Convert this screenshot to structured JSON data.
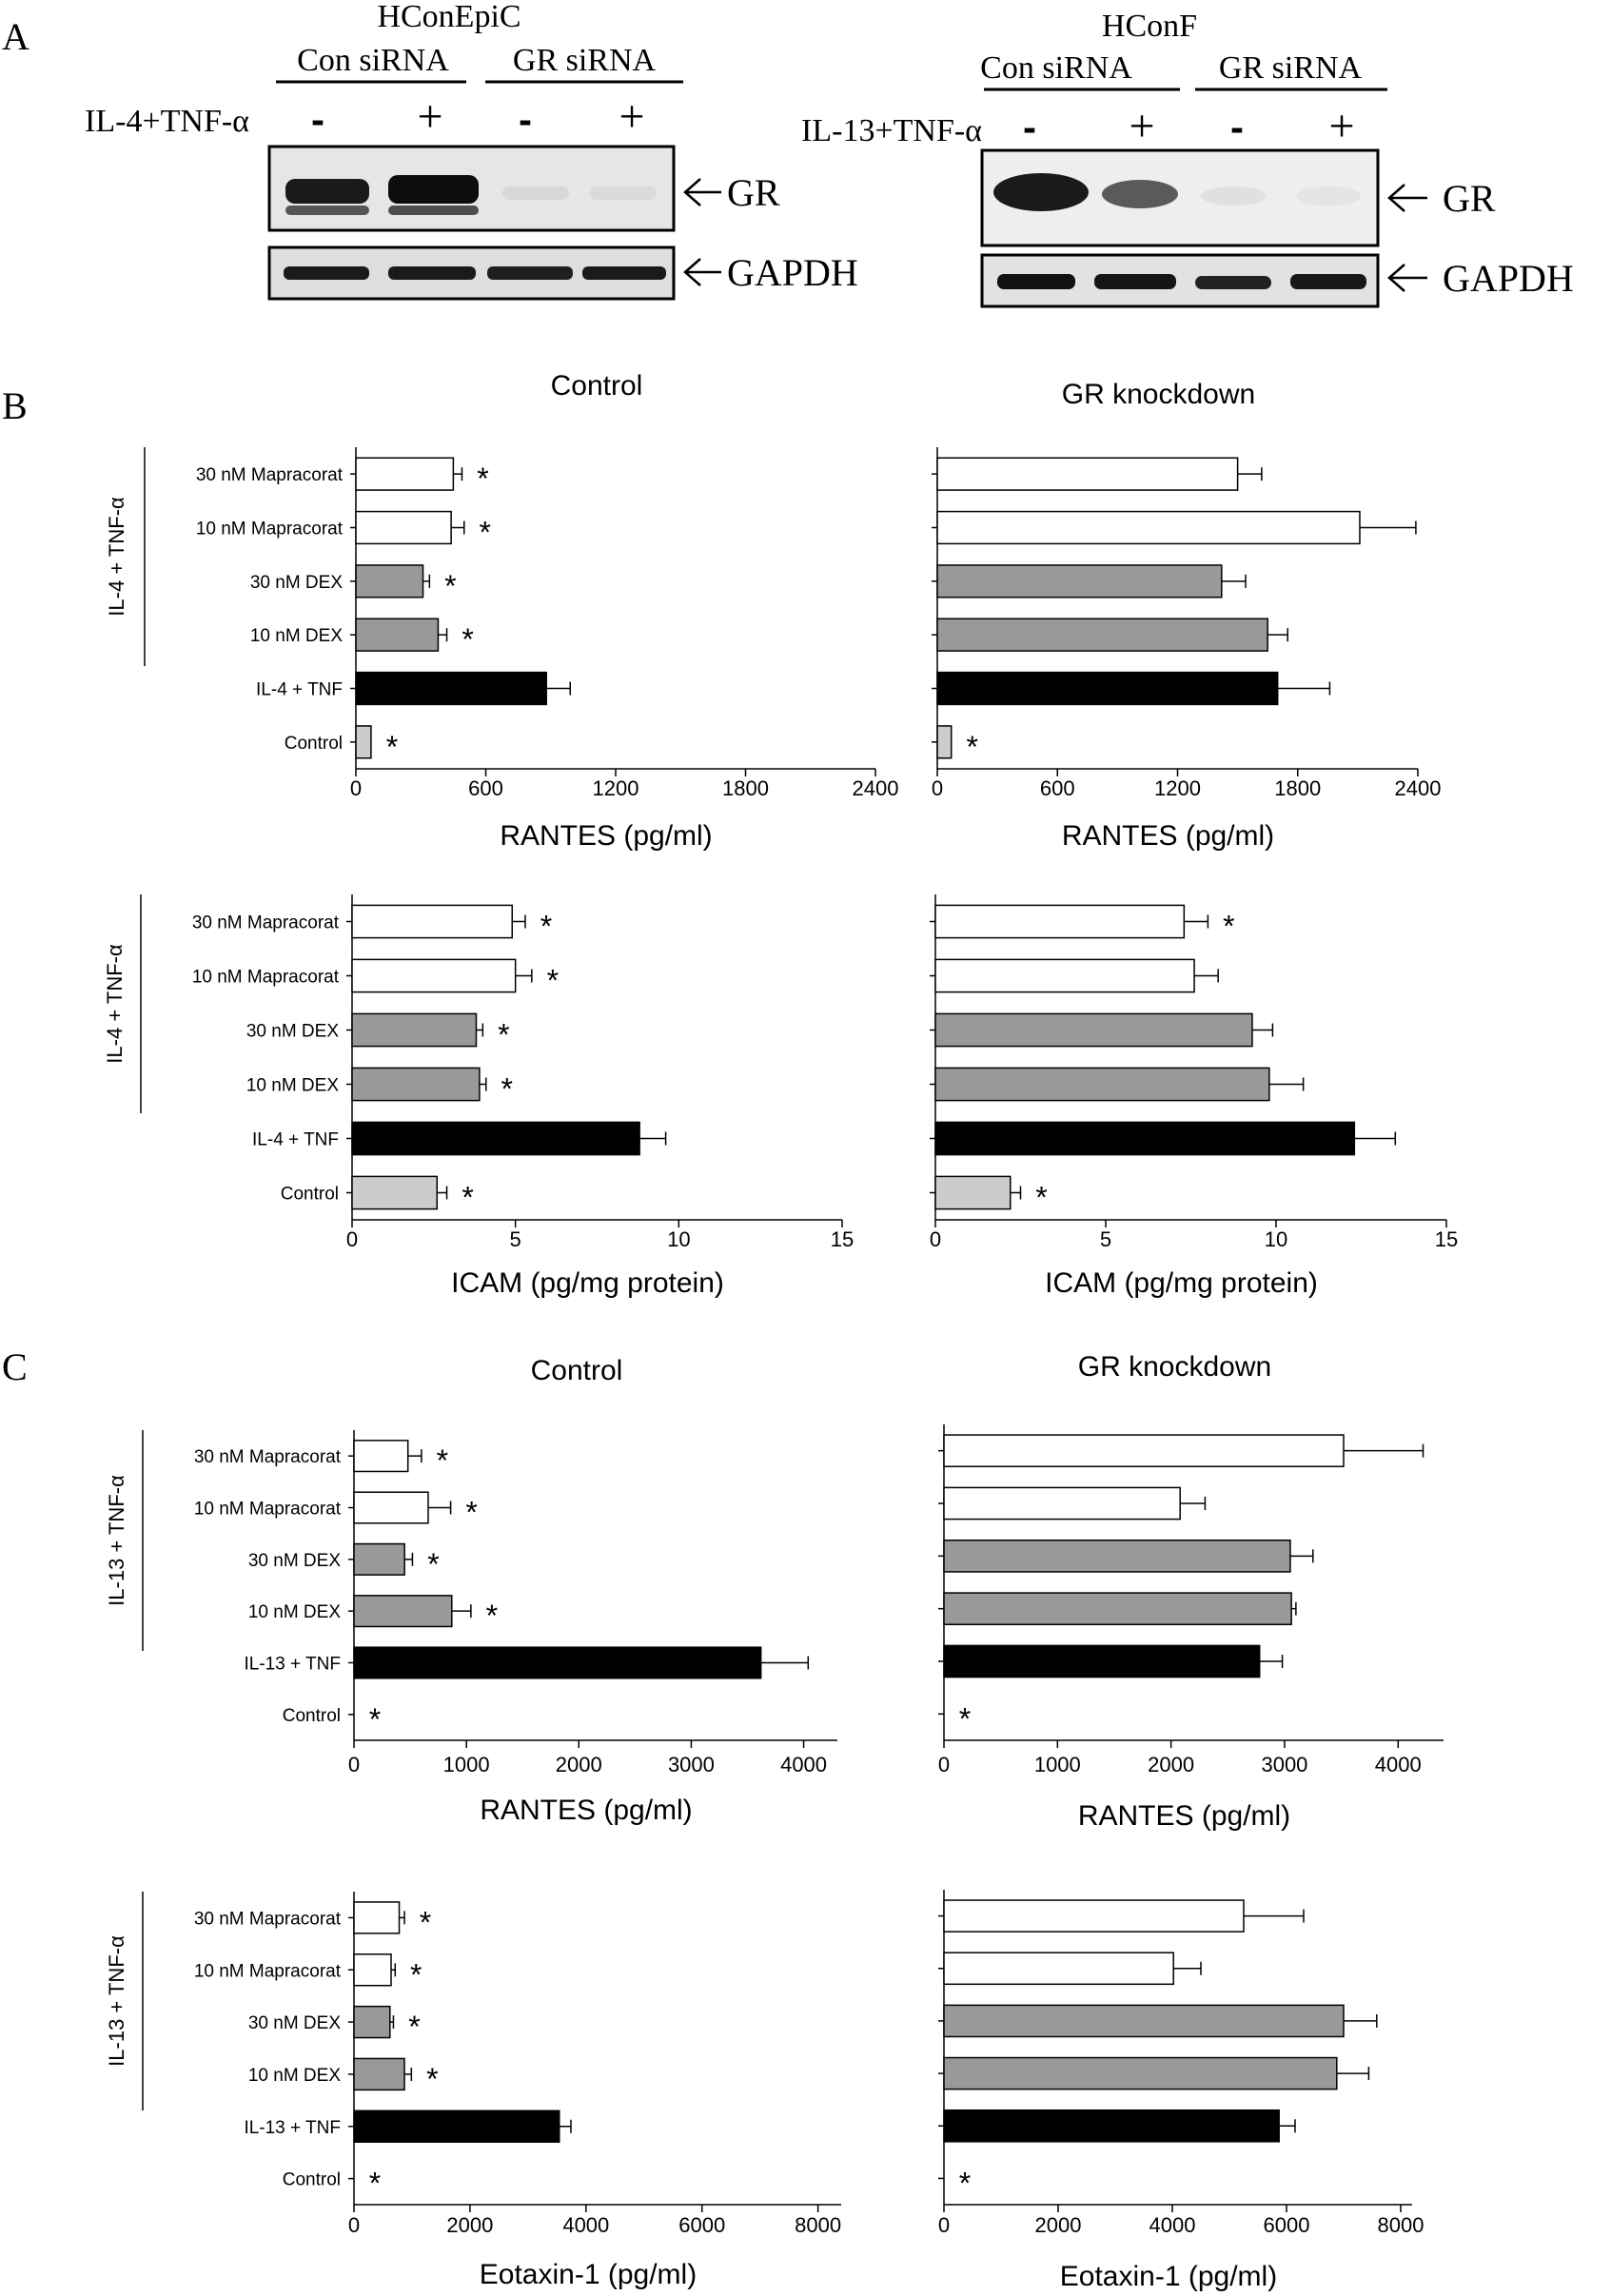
{
  "panel_labels": {
    "a": "A",
    "b": "B",
    "c": "C"
  },
  "blot_left": {
    "cell_line": "HConEpiC",
    "groups": [
      "Con siRNA",
      "GR siRNA"
    ],
    "treatment_label": "IL-4+TNF-α",
    "signs": [
      "-",
      "+",
      "-",
      "+"
    ],
    "band_labels": [
      "GR",
      "GAPDH"
    ]
  },
  "blot_right": {
    "cell_line": "HConF",
    "groups": [
      "Con siRNA",
      "GR siRNA"
    ],
    "treatment_label": "IL-13+TNF-α",
    "signs": [
      "-",
      "+",
      "-",
      "+"
    ],
    "band_labels": [
      "GR",
      "GAPDH"
    ]
  },
  "colors": {
    "mapracorat": "#ffffff",
    "dex": "#999999",
    "stim": "#000000",
    "control": "#cccccc",
    "axis": "#000000"
  },
  "chart_data": [
    {
      "id": "b-rantes-control",
      "type": "bar",
      "orientation": "horizontal",
      "title": "Control",
      "xlabel": "RANTES (pg/ml)",
      "xlim": [
        0,
        2400
      ],
      "xticks": [
        0,
        600,
        1200,
        1800,
        2400
      ],
      "group_label": "IL-4 + TNF-α",
      "categories": [
        "30 nM Mapracorat",
        "10 nM Mapracorat",
        "30 nM DEX",
        "10 nM DEX",
        "IL-4 + TNF",
        "Control"
      ],
      "values": [
        450,
        440,
        310,
        380,
        880,
        70
      ],
      "errors": [
        40,
        60,
        30,
        40,
        110,
        0
      ],
      "significant": [
        true,
        true,
        true,
        true,
        false,
        true
      ],
      "show_category_labels": true
    },
    {
      "id": "b-rantes-gr",
      "type": "bar",
      "orientation": "horizontal",
      "title": "GR knockdown",
      "xlabel": "RANTES (pg/ml)",
      "xlim": [
        0,
        2400
      ],
      "xticks": [
        0,
        600,
        1200,
        1800,
        2400
      ],
      "categories": [
        "30 nM Mapracorat",
        "10 nM Mapracorat",
        "30 nM DEX",
        "10 nM DEX",
        "IL-4 + TNF",
        "Control"
      ],
      "values": [
        1500,
        2110,
        1420,
        1650,
        1700,
        70
      ],
      "errors": [
        120,
        280,
        120,
        100,
        260,
        0
      ],
      "significant": [
        false,
        false,
        false,
        false,
        false,
        true
      ],
      "show_category_labels": false
    },
    {
      "id": "b-icam-control",
      "type": "bar",
      "orientation": "horizontal",
      "title": "",
      "xlabel": "ICAM (pg/mg protein)",
      "xlim": [
        0,
        15
      ],
      "xticks": [
        0,
        5,
        10,
        15
      ],
      "group_label": "IL-4 + TNF-α",
      "categories": [
        "30 nM Mapracorat",
        "10 nM Mapracorat",
        "30 nM DEX",
        "10 nM DEX",
        "IL-4 + TNF",
        "Control"
      ],
      "values": [
        4.9,
        5.0,
        3.8,
        3.9,
        8.8,
        2.6
      ],
      "errors": [
        0.4,
        0.5,
        0.2,
        0.2,
        0.8,
        0.3
      ],
      "significant": [
        true,
        true,
        true,
        true,
        false,
        true
      ],
      "show_category_labels": true
    },
    {
      "id": "b-icam-gr",
      "type": "bar",
      "orientation": "horizontal",
      "title": "",
      "xlabel": "ICAM (pg/mg protein)",
      "xlim": [
        0,
        15
      ],
      "xticks": [
        0,
        5,
        10,
        15
      ],
      "categories": [
        "30 nM Mapracorat",
        "10 nM Mapracorat",
        "30 nM DEX",
        "10 nM DEX",
        "IL-4 + TNF",
        "Control"
      ],
      "values": [
        7.3,
        7.6,
        9.3,
        9.8,
        12.3,
        2.2
      ],
      "errors": [
        0.7,
        0.7,
        0.6,
        1.0,
        1.2,
        0.3
      ],
      "significant": [
        true,
        false,
        false,
        false,
        false,
        true
      ],
      "show_category_labels": false
    },
    {
      "id": "c-rantes-control",
      "type": "bar",
      "orientation": "horizontal",
      "title": "Control",
      "xlabel": "RANTES (pg/ml)",
      "xlim": [
        0,
        4300
      ],
      "xticks": [
        0,
        1000,
        2000,
        3000,
        4000
      ],
      "group_label": "IL-13 + TNF-α",
      "categories": [
        "30 nM Mapracorat",
        "10 nM Mapracorat",
        "30 nM DEX",
        "10 nM DEX",
        "IL-13 + TNF",
        "Control"
      ],
      "values": [
        480,
        660,
        450,
        870,
        3620,
        0
      ],
      "errors": [
        120,
        200,
        70,
        170,
        420,
        0
      ],
      "significant": [
        true,
        true,
        true,
        true,
        false,
        true
      ],
      "show_category_labels": true
    },
    {
      "id": "c-rantes-gr",
      "type": "bar",
      "orientation": "horizontal",
      "title": "GR knockdown",
      "xlabel": "RANTES (pg/ml)",
      "xlim": [
        0,
        4400
      ],
      "xticks": [
        0,
        1000,
        2000,
        3000,
        4000
      ],
      "categories": [
        "30 nM Mapracorat",
        "10 nM Mapracorat",
        "30 nM DEX",
        "10 nM DEX",
        "IL-13 + TNF",
        "Control"
      ],
      "values": [
        3520,
        2080,
        3050,
        3060,
        2780,
        0
      ],
      "errors": [
        700,
        220,
        200,
        40,
        200,
        0
      ],
      "significant": [
        false,
        false,
        false,
        false,
        false,
        true
      ],
      "show_category_labels": false
    },
    {
      "id": "c-eotaxin-control",
      "type": "bar",
      "orientation": "horizontal",
      "title": "",
      "xlabel": "Eotaxin-1 (pg/ml)",
      "xlim": [
        0,
        8400
      ],
      "xticks": [
        0,
        2000,
        4000,
        6000,
        8000
      ],
      "group_label": "IL-13 + TNF-α",
      "categories": [
        "30 nM Mapracorat",
        "10 nM Mapracorat",
        "30 nM DEX",
        "10 nM DEX",
        "IL-13 + TNF",
        "Control"
      ],
      "values": [
        780,
        640,
        620,
        870,
        3540,
        0
      ],
      "errors": [
        90,
        70,
        60,
        120,
        200,
        0
      ],
      "significant": [
        true,
        true,
        true,
        true,
        false,
        true
      ],
      "show_category_labels": true
    },
    {
      "id": "c-eotaxin-gr",
      "type": "bar",
      "orientation": "horizontal",
      "title": "",
      "xlabel": "Eotaxin-1 (pg/ml)",
      "xlim": [
        0,
        8200
      ],
      "xticks": [
        0,
        2000,
        4000,
        6000,
        8000
      ],
      "categories": [
        "30 nM Mapracorat",
        "10 nM Mapracorat",
        "30 nM DEX",
        "10 nM DEX",
        "IL-13 + TNF",
        "Control"
      ],
      "values": [
        5250,
        4020,
        7000,
        6880,
        5870,
        0
      ],
      "errors": [
        1050,
        480,
        580,
        560,
        280,
        0
      ],
      "significant": [
        false,
        false,
        false,
        false,
        false,
        true
      ],
      "show_category_labels": false
    }
  ]
}
